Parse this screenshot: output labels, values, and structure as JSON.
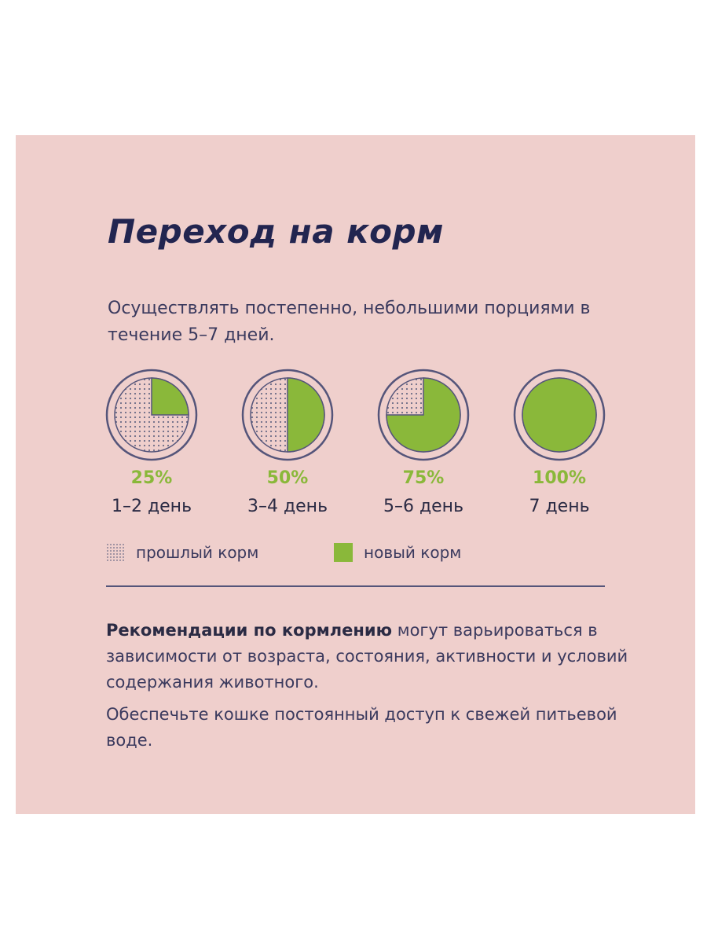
{
  "colors": {
    "background": "#efcfcc",
    "new_food": "#8ab83a",
    "old_food_dots": "#6a6a86",
    "ring": "#55557a",
    "text": "#3b3a5e",
    "title": "#222550"
  },
  "title": "Переход на корм",
  "intro": "Осуществлять постепенно, небольшими порциями в течение 5–7 дней.",
  "chart_data": {
    "type": "pie",
    "title": "",
    "categories": [
      "1–2 день",
      "3–4 день",
      "5–6 день",
      "7 день"
    ],
    "percent_labels": [
      "25%",
      "50%",
      "75%",
      "100%"
    ],
    "series": [
      {
        "name": "новый корм",
        "values": [
          25,
          50,
          75,
          100
        ]
      },
      {
        "name": "прошлый корм",
        "values": [
          75,
          50,
          25,
          0
        ]
      }
    ],
    "unit": "%"
  },
  "legend": {
    "old_label": "прошлый корм",
    "new_label": "новый корм"
  },
  "notes": {
    "bold": "Рекомендации по кормлению",
    "rest": " могут варьироваться в зависимости от возраста, состояния, активности и условий содержания животного.",
    "water": "Обеспечьте кошке постоянный доступ к свежей питьевой воде."
  }
}
